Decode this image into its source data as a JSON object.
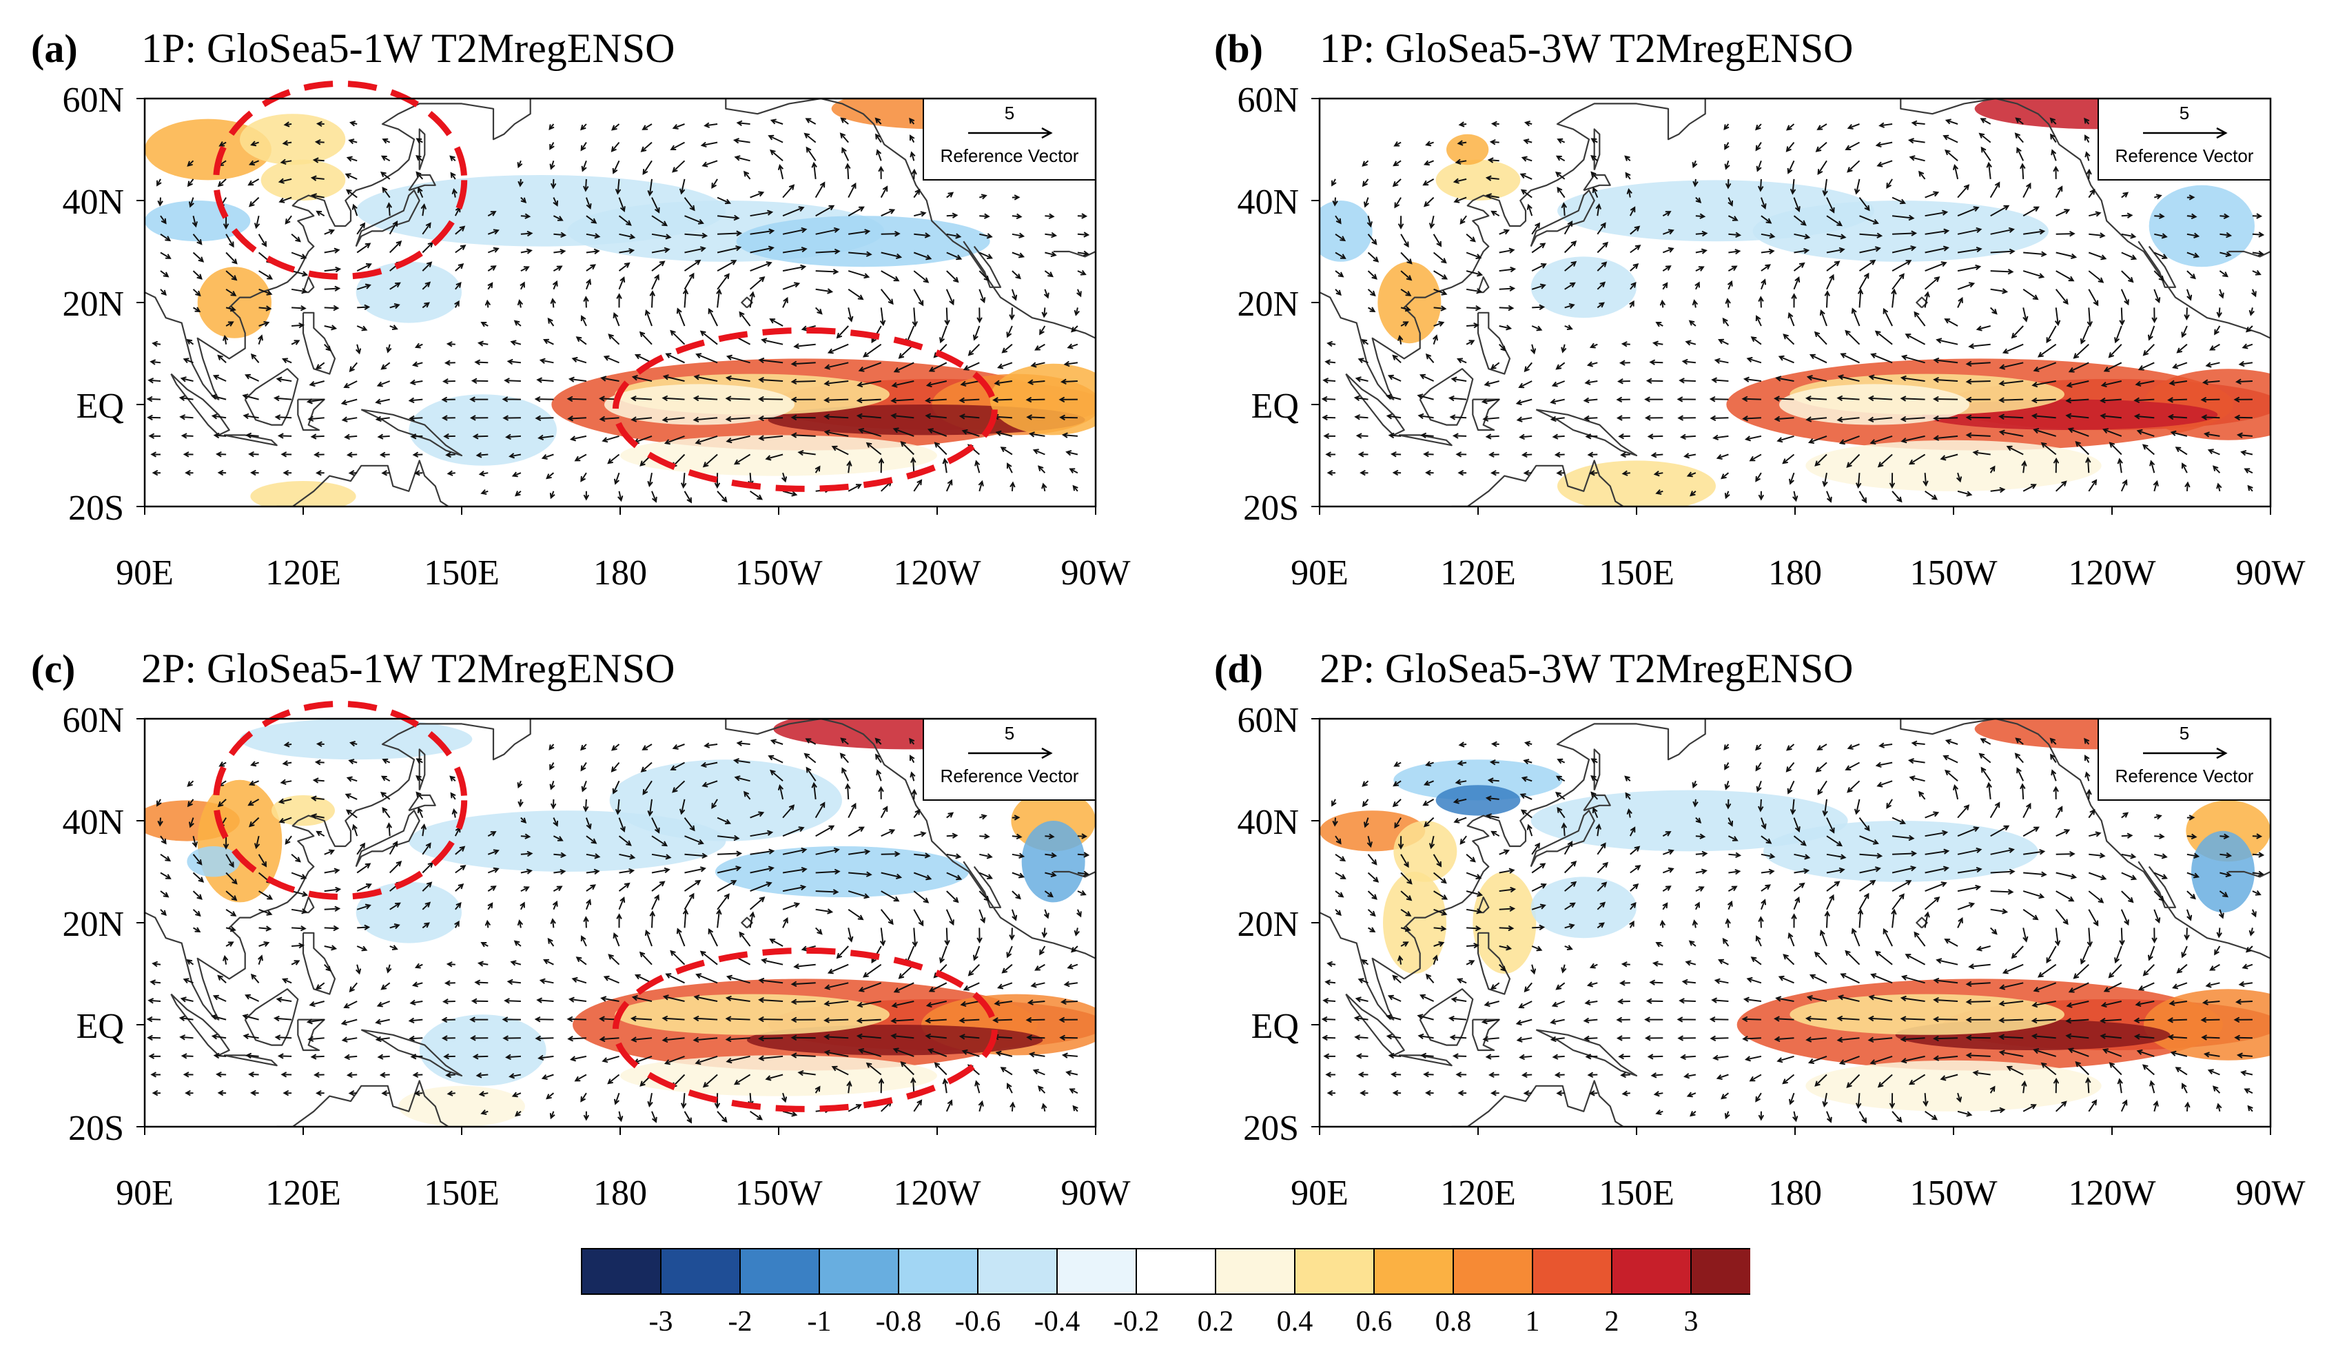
{
  "figure": {
    "panels": [
      {
        "label": "(a)",
        "title": "1P: GloSea5-1W T2MregENSO",
        "highlighted": true
      },
      {
        "label": "(b)",
        "title": "1P: GloSea5-3W T2MregENSO",
        "highlighted": false
      },
      {
        "label": "(c)",
        "title": "2P: GloSea5-1W T2MregENSO",
        "highlighted": true
      },
      {
        "label": "(d)",
        "title": "2P: GloSea5-3W T2MregENSO",
        "highlighted": false
      }
    ],
    "x_ticks": [
      "90E",
      "120E",
      "150E",
      "180",
      "150W",
      "120W",
      "90W"
    ],
    "y_ticks": [
      "60N",
      "40N",
      "20N",
      "EQ",
      "20S"
    ],
    "reference_vector": {
      "magnitude": "5",
      "label": "Reference Vector",
      "corner": "K"
    },
    "colorbar": {
      "labels": [
        "-3",
        "-2",
        "-1",
        "-0.8",
        "-0.6",
        "-0.4",
        "-0.2",
        "0.2",
        "0.4",
        "0.6",
        "0.8",
        "1",
        "2",
        "3"
      ],
      "colors": [
        "#16295e",
        "#1f4e96",
        "#3a80c4",
        "#68aee0",
        "#a2d6f4",
        "#c7e6f7",
        "#e9f5fc",
        "#ffffff",
        "#fdf6dd",
        "#fde292",
        "#fbb143",
        "#f68a35",
        "#e8562f",
        "#c71f2a",
        "#8c1a1c"
      ]
    },
    "colors": {
      "highlight": "#e8141c",
      "coast": "#3a3a3a",
      "vector": "#111111"
    }
  }
}
